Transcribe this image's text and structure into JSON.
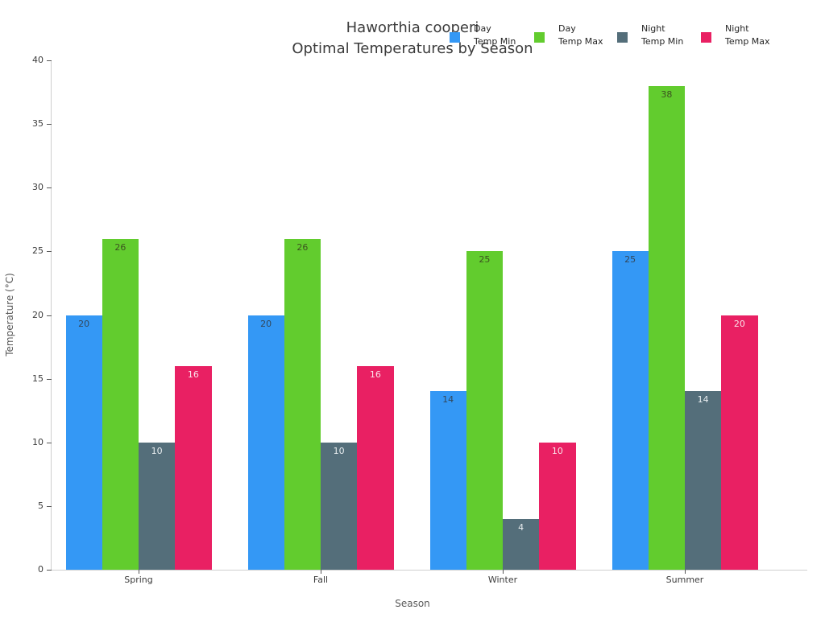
{
  "chart_data": {
    "type": "bar",
    "title_lines": [
      "Haworthia cooperi",
      "Optimal Temperatures by Season"
    ],
    "xlabel": "Season",
    "ylabel": "Temperature (°C)",
    "categories": [
      "Spring",
      "Fall",
      "Winter",
      "Summer"
    ],
    "series": [
      {
        "name": "Day Temp Min",
        "legend_lines": [
          "Day",
          "Temp Min"
        ],
        "color": "#3498F5",
        "label_color": "#33475A",
        "values": [
          20,
          20,
          14,
          25
        ]
      },
      {
        "name": "Day Temp Max",
        "legend_lines": [
          "Day",
          "Temp Max"
        ],
        "color": "#62CC2E",
        "label_color": "#3C5220",
        "values": [
          26,
          26,
          25,
          38
        ]
      },
      {
        "name": "Night Temp Min",
        "legend_lines": [
          "Night",
          "Temp Min"
        ],
        "color": "#546E7A",
        "label_color": "#E9EEF0",
        "values": [
          10,
          10,
          4,
          14
        ]
      },
      {
        "name": "Night Temp Max",
        "legend_lines": [
          "Night",
          "Temp Max"
        ],
        "color": "#E92063",
        "label_color": "#FAE3EA",
        "values": [
          16,
          16,
          10,
          20
        ]
      }
    ],
    "ylim": [
      0,
      40
    ],
    "yticks": [
      0,
      5,
      10,
      15,
      20,
      25,
      30,
      35,
      40
    ],
    "grid": false,
    "legend_position": "top-right",
    "bar_value_labels": true
  }
}
